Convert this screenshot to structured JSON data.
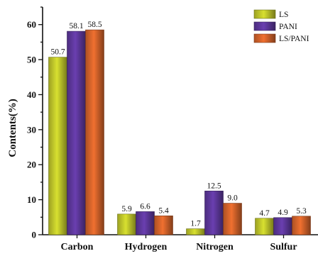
{
  "chart_data": {
    "type": "bar",
    "title": "",
    "xlabel": "",
    "ylabel": "Contents(%)",
    "ylim": [
      0,
      65
    ],
    "yticks": [
      0,
      10,
      20,
      30,
      40,
      50,
      60
    ],
    "categories": [
      "Carbon",
      "Hydrogen",
      "Nitrogen",
      "Sulfur"
    ],
    "series": [
      {
        "name": "LS",
        "values": [
          50.7,
          5.9,
          1.7,
          4.7
        ],
        "data_labels": [
          "50.7",
          "5.9",
          "1.7",
          "4.7"
        ],
        "color": "#d8e030"
      },
      {
        "name": "PANI",
        "values": [
          58.1,
          6.6,
          12.5,
          4.9
        ],
        "data_labels": [
          "58.1",
          "6.6",
          "12.5",
          "4.9"
        ],
        "color": "#6a3fb0"
      },
      {
        "name": "LS/PANI",
        "values": [
          58.5,
          5.4,
          9.0,
          5.3
        ],
        "data_labels": [
          "58.5",
          "5.4",
          "9.0",
          "5.3"
        ],
        "color": "#f07030"
      }
    ],
    "legend": {
      "position": "top-right"
    },
    "grid": false
  }
}
